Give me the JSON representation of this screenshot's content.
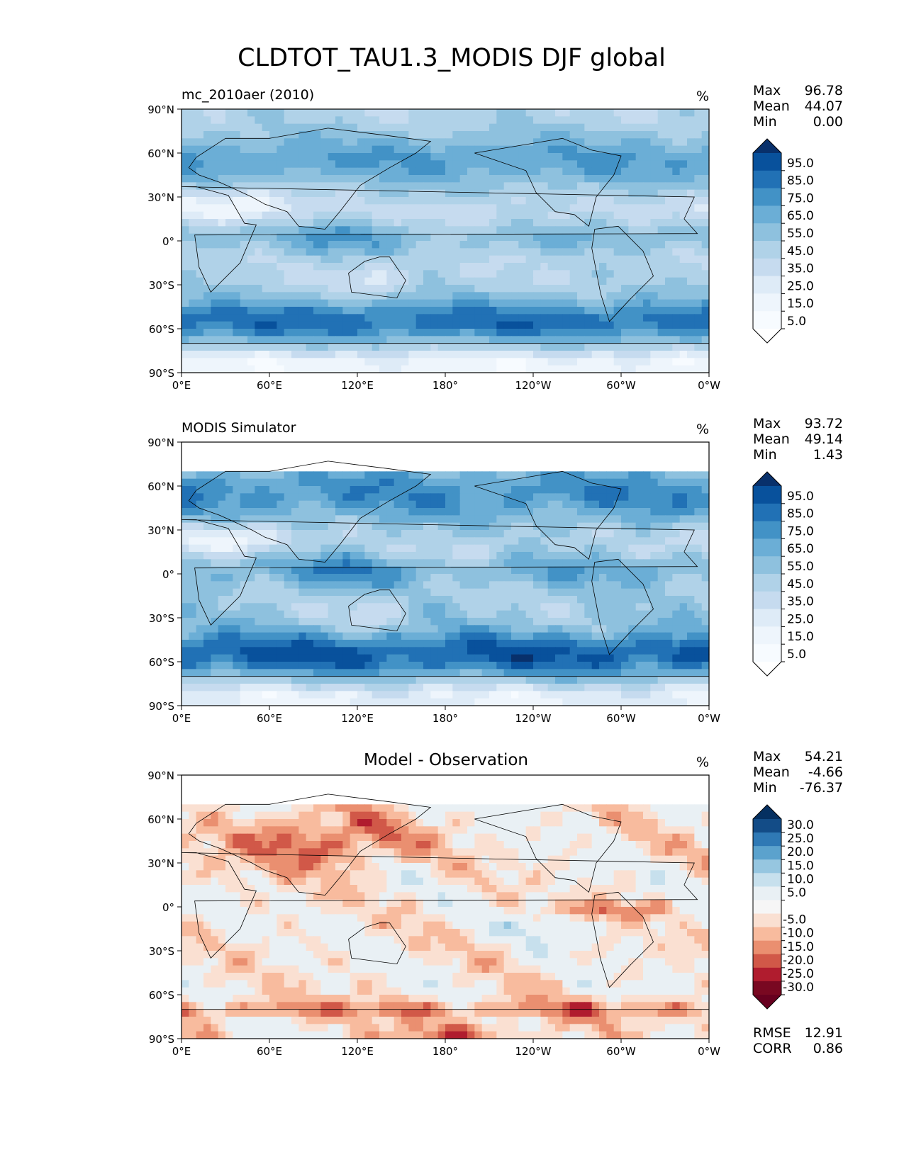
{
  "figure": {
    "title": "CLDTOT_TAU1.3_MODIS DJF global"
  },
  "panels": [
    {
      "left_title": "mc_2010aer (2010)",
      "center_title": "",
      "units": "%",
      "stats": [
        {
          "label": "Max",
          "value": "96.78"
        },
        {
          "label": "Mean",
          "value": "44.07"
        },
        {
          "label": "Min",
          "value": "0.00"
        }
      ],
      "colorbar": {
        "ticks": [
          "95.0",
          "85.0",
          "75.0",
          "65.0",
          "55.0",
          "45.0",
          "35.0",
          "25.0",
          "15.0",
          "5.0"
        ],
        "colors": [
          "#08306b",
          "#08519c",
          "#2171b5",
          "#4292c6",
          "#6baed6",
          "#8ec1de",
          "#b0d2e8",
          "#c6dbef",
          "#deebf7",
          "#eef5fc",
          "#f7fbff",
          "#ffffff"
        ]
      },
      "field": "model"
    },
    {
      "left_title": "MODIS Simulator",
      "center_title": "",
      "units": "%",
      "stats": [
        {
          "label": "Max",
          "value": "93.72"
        },
        {
          "label": "Mean",
          "value": "49.14"
        },
        {
          "label": "Min",
          "value": "1.43"
        }
      ],
      "colorbar": {
        "ticks": [
          "95.0",
          "85.0",
          "75.0",
          "65.0",
          "55.0",
          "45.0",
          "35.0",
          "25.0",
          "15.0",
          "5.0"
        ],
        "colors": [
          "#08306b",
          "#08519c",
          "#2171b5",
          "#4292c6",
          "#6baed6",
          "#8ec1de",
          "#b0d2e8",
          "#c6dbef",
          "#deebf7",
          "#eef5fc",
          "#f7fbff",
          "#ffffff"
        ]
      },
      "field": "obs"
    },
    {
      "left_title": "",
      "center_title": "Model - Observation",
      "units": "%",
      "stats": [
        {
          "label": "Max",
          "value": "54.21"
        },
        {
          "label": "Mean",
          "value": "-4.66"
        },
        {
          "label": "Min",
          "value": "-76.37"
        }
      ],
      "extra_stats": [
        {
          "label": "RMSE",
          "value": "12.91"
        },
        {
          "label": "CORR",
          "value": "0.86"
        }
      ],
      "colorbar": {
        "ticks": [
          "30.0",
          "25.0",
          "20.0",
          "15.0",
          "10.0",
          "5.0",
          "-5.0",
          "-10.0",
          "-15.0",
          "-20.0",
          "-25.0",
          "-30.0"
        ],
        "colors": [
          "#053061",
          "#134c87",
          "#2f79b5",
          "#5ba2cd",
          "#96c6e0",
          "#c7e0ed",
          "#e9f0f4",
          "#f6f6f6",
          "#fae0d2",
          "#f8bb9e",
          "#ea8f70",
          "#d15848",
          "#b01c2e",
          "#790821",
          "#67001f"
        ]
      },
      "field": "diff"
    }
  ],
  "chart_data": {
    "type": "heatmap",
    "projection": "plate-carree",
    "x_ticks": [
      "0°E",
      "60°E",
      "120°E",
      "180°",
      "120°W",
      "60°W",
      "0°W"
    ],
    "y_ticks": [
      "90°N",
      "60°N",
      "30°N",
      "0°",
      "30°S",
      "60°S",
      "90°S"
    ],
    "x_range": [
      0,
      360
    ],
    "y_range": [
      -90,
      90
    ],
    "obs_coverage_lat_max": 72
  }
}
